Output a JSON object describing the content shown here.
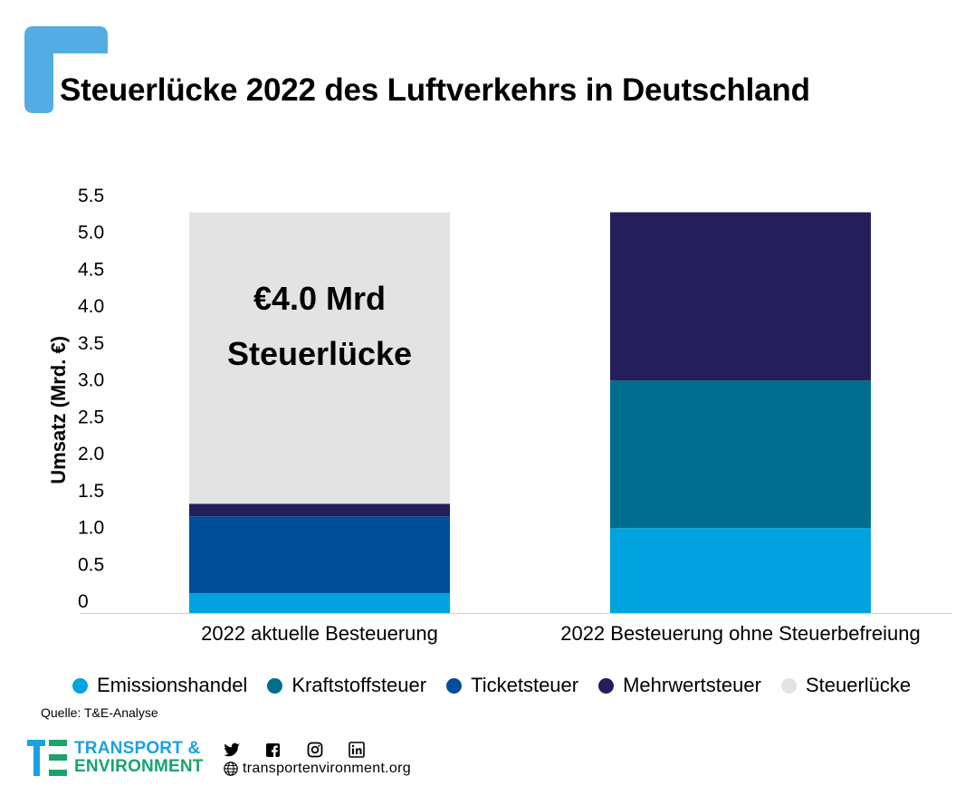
{
  "title": "Steuerlücke 2022 des Luftverkehrs in Deutschland",
  "source": "Quelle: T&E-Analyse",
  "footer": {
    "logo_line1": "TRANSPORT &",
    "logo_line2": "ENVIRONMENT",
    "website": "transportenvironment.org",
    "social_icons": [
      "twitter-icon",
      "facebook-icon",
      "instagram-icon",
      "linkedin-icon"
    ]
  },
  "colors": {
    "brand_blue": "#54ace4",
    "Emissionshandel": "#00a3e0",
    "Kraftstoffsteuer": "#006e8f",
    "Ticketsteuer": "#004e9a",
    "Mehrwertsteuer": "#241f5a",
    "Steuerlücke": "#e3e3e3"
  },
  "chart_data": {
    "type": "bar",
    "stacked": true,
    "ylabel": "Umsatz (Mrd. €)",
    "xlabel": "",
    "ylim": [
      0,
      5.5
    ],
    "yticks": [
      "0",
      "0.5",
      "1.0",
      "1.5",
      "2.0",
      "2.5",
      "3.0",
      "3.5",
      "4.0",
      "4.5",
      "5.0",
      "5.5"
    ],
    "categories": [
      "2022 aktuelle Besteuerung",
      "2022 Besteuerung ohne Steuerbefreiung"
    ],
    "series": [
      {
        "name": "Emissionshandel",
        "values": [
          0.27,
          1.15
        ]
      },
      {
        "name": "Kraftstoffsteuer",
        "values": [
          0,
          2.0
        ]
      },
      {
        "name": "Ticketsteuer",
        "values": [
          1.04,
          0
        ]
      },
      {
        "name": "Mehrwertsteuer",
        "values": [
          0.17,
          2.28
        ]
      },
      {
        "name": "Steuerlücke",
        "values": [
          3.95,
          0
        ]
      }
    ],
    "annotation": {
      "line1": "€4.0 Mrd",
      "line2": "Steuerlücke"
    },
    "grid": false,
    "legend_position": "bottom"
  }
}
